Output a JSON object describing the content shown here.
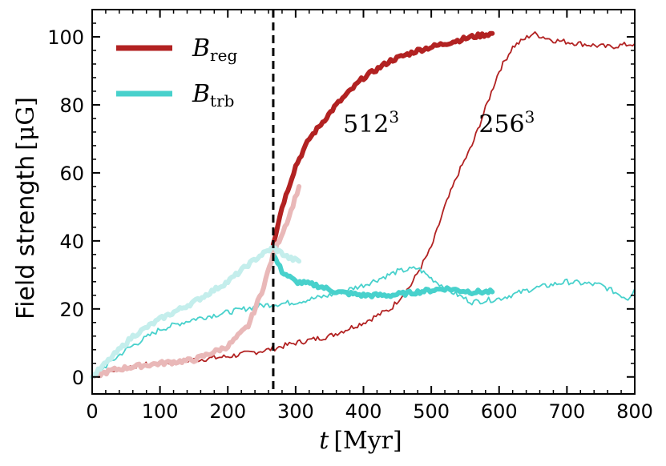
{
  "chart_data": {
    "type": "line",
    "title": "",
    "xlabel_var": "t",
    "xlabel_unit": "[Myr]",
    "ylabel_text": "Field strength",
    "ylabel_unit": "[μG]",
    "xlim": [
      0,
      800
    ],
    "ylim": [
      -5,
      108
    ],
    "xticks": [
      0,
      100,
      200,
      300,
      400,
      500,
      600,
      700,
      800
    ],
    "yticks": [
      0,
      20,
      40,
      60,
      80,
      100
    ],
    "grid": false,
    "legend_position": "upper-left",
    "vline": {
      "x": 267,
      "style": "dashed",
      "color": "#000000"
    },
    "annotations": [
      {
        "base": "512",
        "sup": "3",
        "x": 370,
        "y": 72
      },
      {
        "base": "256",
        "sup": "3",
        "x": 570,
        "y": 72
      }
    ],
    "legend": [
      {
        "main": "B",
        "sub": "reg",
        "color": "#b22222"
      },
      {
        "main": "B",
        "sub": "trb",
        "color": "#48d1cc"
      }
    ],
    "series": [
      {
        "group": "B_reg",
        "resolution": "256^3",
        "style": "thin",
        "color": "#b22222",
        "x": [
          0,
          50,
          100,
          150,
          200,
          260,
          300,
          350,
          400,
          440,
          470,
          500,
          520,
          540,
          560,
          580,
          600,
          620,
          650,
          680,
          720,
          760,
          800
        ],
        "y": [
          0,
          3,
          4,
          5,
          6,
          8,
          10,
          12,
          16,
          20,
          27,
          38,
          50,
          60,
          68,
          79,
          90,
          97,
          101,
          99,
          98,
          97,
          98
        ]
      },
      {
        "group": "B_trb",
        "resolution": "256^3",
        "style": "thin",
        "color": "#48d1cc",
        "x": [
          0,
          50,
          100,
          150,
          200,
          250,
          300,
          350,
          400,
          450,
          480,
          500,
          530,
          560,
          600,
          650,
          700,
          750,
          790,
          800
        ],
        "y": [
          0,
          8,
          14,
          17,
          19,
          21,
          22,
          24,
          27,
          31,
          32,
          29,
          25,
          22,
          23,
          26,
          28,
          27,
          23,
          26
        ]
      },
      {
        "group": "B_reg",
        "resolution": "512^3",
        "style": "thick",
        "color": "#b22222",
        "x": [
          267,
          280,
          300,
          320,
          340,
          360,
          400,
          440,
          480,
          520,
          560,
          590
        ],
        "y": [
          39,
          50,
          62,
          70,
          75,
          80,
          88,
          93,
          96,
          98,
          100,
          101
        ]
      },
      {
        "group": "B_trb",
        "resolution": "512^3",
        "style": "thick",
        "color": "#48d1cc",
        "x": [
          267,
          280,
          300,
          330,
          360,
          400,
          440,
          480,
          520,
          560,
          590
        ],
        "y": [
          36,
          31,
          28,
          27,
          25,
          24,
          24,
          25,
          26,
          25,
          25
        ]
      },
      {
        "group": "B_reg",
        "resolution": "512^3",
        "style": "faded",
        "color": "#e9b8b8",
        "x": [
          0,
          30,
          60,
          100,
          150,
          200,
          230,
          250,
          267,
          290,
          305
        ],
        "y": [
          0,
          2,
          3,
          4,
          5,
          9,
          15,
          25,
          36,
          47,
          56
        ]
      },
      {
        "group": "B_trb",
        "resolution": "512^3",
        "style": "faded",
        "color": "#c4eeec",
        "x": [
          0,
          30,
          60,
          100,
          150,
          200,
          230,
          250,
          267,
          290,
          305
        ],
        "y": [
          0,
          6,
          12,
          17,
          22,
          28,
          33,
          36,
          38,
          35,
          34
        ]
      }
    ]
  }
}
